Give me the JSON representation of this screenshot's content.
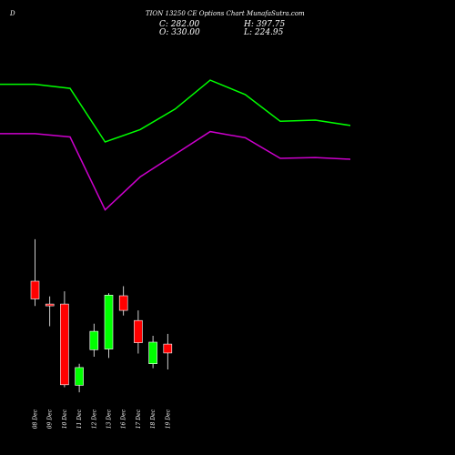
{
  "header": {
    "corner_letter": "D",
    "title": "TION  13250  CE Options  Chart MunafaSutra.com",
    "close": "C: 282.00",
    "open": "O: 330.00",
    "high": "H: 397.75",
    "low": "L: 224.95"
  },
  "chart_data": {
    "type": "candlestick",
    "categories": [
      "08 Dec",
      "09 Dec",
      "10 Dec",
      "11 Dec",
      "12 Dec",
      "13 Dec",
      "16 Dec",
      "17 Dec",
      "18 Dec",
      "19 Dec"
    ],
    "candles": [
      {
        "open": 282,
        "high": 348,
        "low": 243,
        "close": 254
      },
      {
        "open": 246,
        "high": 258,
        "low": 211,
        "close": 244
      },
      {
        "open": 246,
        "high": 266,
        "low": 115,
        "close": 119
      },
      {
        "open": 118,
        "high": 152,
        "low": 107,
        "close": 146
      },
      {
        "open": 174,
        "high": 215,
        "low": 163,
        "close": 203
      },
      {
        "open": 175,
        "high": 263,
        "low": 161,
        "close": 260
      },
      {
        "open": 259,
        "high": 274,
        "low": 228,
        "close": 236
      },
      {
        "open": 220,
        "high": 236,
        "low": 168,
        "close": 185
      },
      {
        "open": 152,
        "high": 196,
        "low": 145,
        "close": 186
      },
      {
        "open": 183,
        "high": 199,
        "low": 143,
        "close": 169
      }
    ],
    "candle_colors": {
      "up": "#00ff00",
      "down": "#ff0000"
    },
    "bands": {
      "upper": [
        570,
        570,
        560,
        430,
        460,
        510,
        580,
        545,
        480,
        483,
        470
      ],
      "lower": [
        450,
        450,
        442,
        265,
        345,
        400,
        455,
        440,
        390,
        392,
        388
      ],
      "upper_color": "#00ff00",
      "lower_color": "#cc00cc"
    },
    "grid": false
  }
}
